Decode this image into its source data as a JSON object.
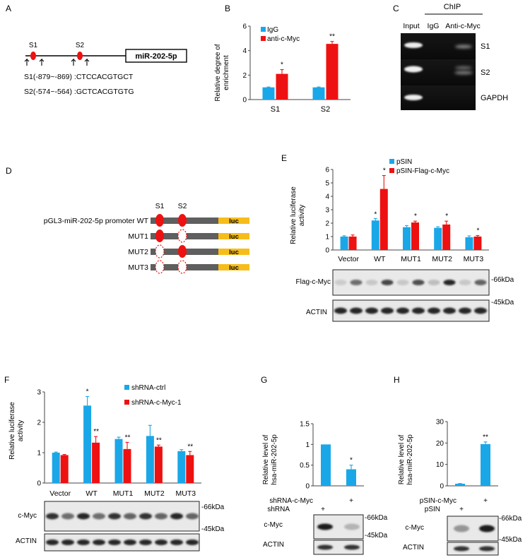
{
  "panels": {
    "A": {
      "letter": "A",
      "gene": "miR-202-5p",
      "site1": "S1",
      "site2": "S2",
      "seq1": "S1(-879~-869) :CTCCACGTGCT",
      "seq2": "S2(-574~-564) :GCTCACGTGTG"
    },
    "B": {
      "letter": "B",
      "yticks": [
        "0",
        "2",
        "4",
        "6"
      ],
      "ylabel_line1": "Relative degree of",
      "ylabel_line2": "enrichment",
      "legend": [
        "IgG",
        "anti-c-Myc"
      ],
      "categories": [
        "S1",
        "S2"
      ],
      "stars": [
        "*",
        "**"
      ]
    },
    "C": {
      "letter": "C",
      "chip": "ChIP",
      "lanes": [
        "Input",
        "IgG",
        "Anti-c-Myc"
      ],
      "rows": [
        "S1",
        "S2",
        "GAPDH"
      ]
    },
    "D": {
      "letter": "D",
      "s1": "S1",
      "s2": "S2",
      "constructs": [
        "pGL3-miR-202-5p promoter WT",
        "MUT1",
        "MUT2",
        "MUT3"
      ],
      "luc": "luc"
    },
    "E": {
      "letter": "E",
      "yticks": [
        "0",
        "1",
        "2",
        "3",
        "4",
        "5",
        "6"
      ],
      "ylabel_line1": "Relative luciferase",
      "ylabel_line2": "activity",
      "legend": [
        "pSIN",
        "pSIN-Flag-c-Myc"
      ],
      "categories": [
        "Vector",
        "WT",
        "MUT1",
        "MUT2",
        "MUT3"
      ],
      "blot1": "Flag-c-Myc",
      "blot2": "ACTIN",
      "mw1": "-66kDa",
      "mw2": "-45kDa"
    },
    "F": {
      "letter": "F",
      "yticks": [
        "0",
        "1",
        "2",
        "3"
      ],
      "ylabel_line1": "Relative luciferase",
      "ylabel_line2": "activity",
      "legend": [
        "shRNA-ctrl",
        "shRNA-c-Myc-1"
      ],
      "categories": [
        "Vector",
        "WT",
        "MUT1",
        "MUT2",
        "MUT3"
      ],
      "blot1": "c-Myc",
      "blot2": "ACTIN",
      "mw1": "-66kDa",
      "mw2": "-45kDa"
    },
    "G": {
      "letter": "G",
      "yticks": [
        "0",
        "0.5",
        "1",
        "1.5"
      ],
      "ylabel_line1": "Relative level of",
      "ylabel_line2": "hsa-miR-202-5p",
      "row1": "shRNA-c-Myc",
      "row2": "shRNA",
      "plus": "+",
      "blot1": "c-Myc",
      "blot2": "ACTIN",
      "mw1": "-66kDa",
      "mw2": "-45kDa"
    },
    "H": {
      "letter": "H",
      "yticks": [
        "0",
        "10",
        "20",
        "30"
      ],
      "ylabel_line1": "Relative level of",
      "ylabel_line2": "hsa-miR-202-5p",
      "row1": "pSIN-c-Myc",
      "row2": "pSIN",
      "plus": "+",
      "blot1": "c-Myc",
      "blot2": "ACTIN",
      "mw1": "-66kDa",
      "mw2": "-45kDa"
    }
  },
  "colors": {
    "blue": "#1aa7e8",
    "red": "#ee1111",
    "gray": "#5f5f5f",
    "luc": "#f6bd1a"
  },
  "chart_data": [
    {
      "panel": "B",
      "type": "bar",
      "title": "",
      "ylabel": "Relative degree of enrichment",
      "ylim": [
        0,
        6
      ],
      "categories": [
        "S1",
        "S2"
      ],
      "series": [
        {
          "name": "IgG",
          "values": [
            1,
            1
          ],
          "errors": [
            0.03,
            0.03
          ]
        },
        {
          "name": "anti-c-Myc",
          "values": [
            2.1,
            4.55
          ],
          "errors": [
            0.35,
            0.2
          ]
        }
      ],
      "annotations": [
        "*",
        "**"
      ]
    },
    {
      "panel": "E",
      "type": "bar",
      "ylabel": "Relative luciferase activity",
      "ylim": [
        0,
        6
      ],
      "categories": [
        "Vector",
        "WT",
        "MUT1",
        "MUT2",
        "MUT3"
      ],
      "series": [
        {
          "name": "pSIN",
          "values": [
            1,
            2.2,
            1.7,
            1.65,
            0.95
          ],
          "errors": [
            0.06,
            0.15,
            0.12,
            0.08,
            0.1
          ]
        },
        {
          "name": "pSIN-Flag-c-Myc",
          "values": [
            1,
            4.55,
            2.05,
            1.9,
            1.0
          ],
          "errors": [
            0.12,
            1.0,
            0.1,
            0.25,
            0.08
          ]
        }
      ],
      "annotations": [
        "*",
        "*",
        "*",
        "*",
        "*"
      ]
    },
    {
      "panel": "F",
      "type": "bar",
      "ylabel": "Relative luciferase activity",
      "ylim": [
        0,
        3
      ],
      "categories": [
        "Vector",
        "WT",
        "MUT1",
        "MUT2",
        "MUT3"
      ],
      "series": [
        {
          "name": "shRNA-ctrl",
          "values": [
            1.0,
            2.55,
            1.45,
            1.55,
            1.05
          ],
          "errors": [
            0.02,
            0.3,
            0.06,
            0.35,
            0.05
          ]
        },
        {
          "name": "shRNA-c-Myc-1",
          "values": [
            0.92,
            1.33,
            1.12,
            1.2,
            0.92
          ],
          "errors": [
            0.02,
            0.2,
            0.22,
            0.05,
            0.12
          ]
        }
      ],
      "annotations": [
        "*",
        "**",
        "**",
        "**",
        "**"
      ]
    },
    {
      "panel": "G",
      "type": "bar",
      "ylabel": "Relative level of hsa-miR-202-5p",
      "ylim": [
        0,
        1.5
      ],
      "categories": [
        "shRNA",
        "shRNA-c-Myc"
      ],
      "values": [
        1.0,
        0.4
      ],
      "errors": [
        0.0,
        0.1
      ],
      "annotations": [
        "",
        "*"
      ]
    },
    {
      "panel": "H",
      "type": "bar",
      "ylabel": "Relative level of hsa-miR-202-5p",
      "ylim": [
        0,
        30
      ],
      "categories": [
        "pSIN",
        "pSIN-c-Myc"
      ],
      "values": [
        1.0,
        19.5
      ],
      "errors": [
        0.1,
        1.0
      ],
      "annotations": [
        "",
        "**"
      ]
    }
  ]
}
